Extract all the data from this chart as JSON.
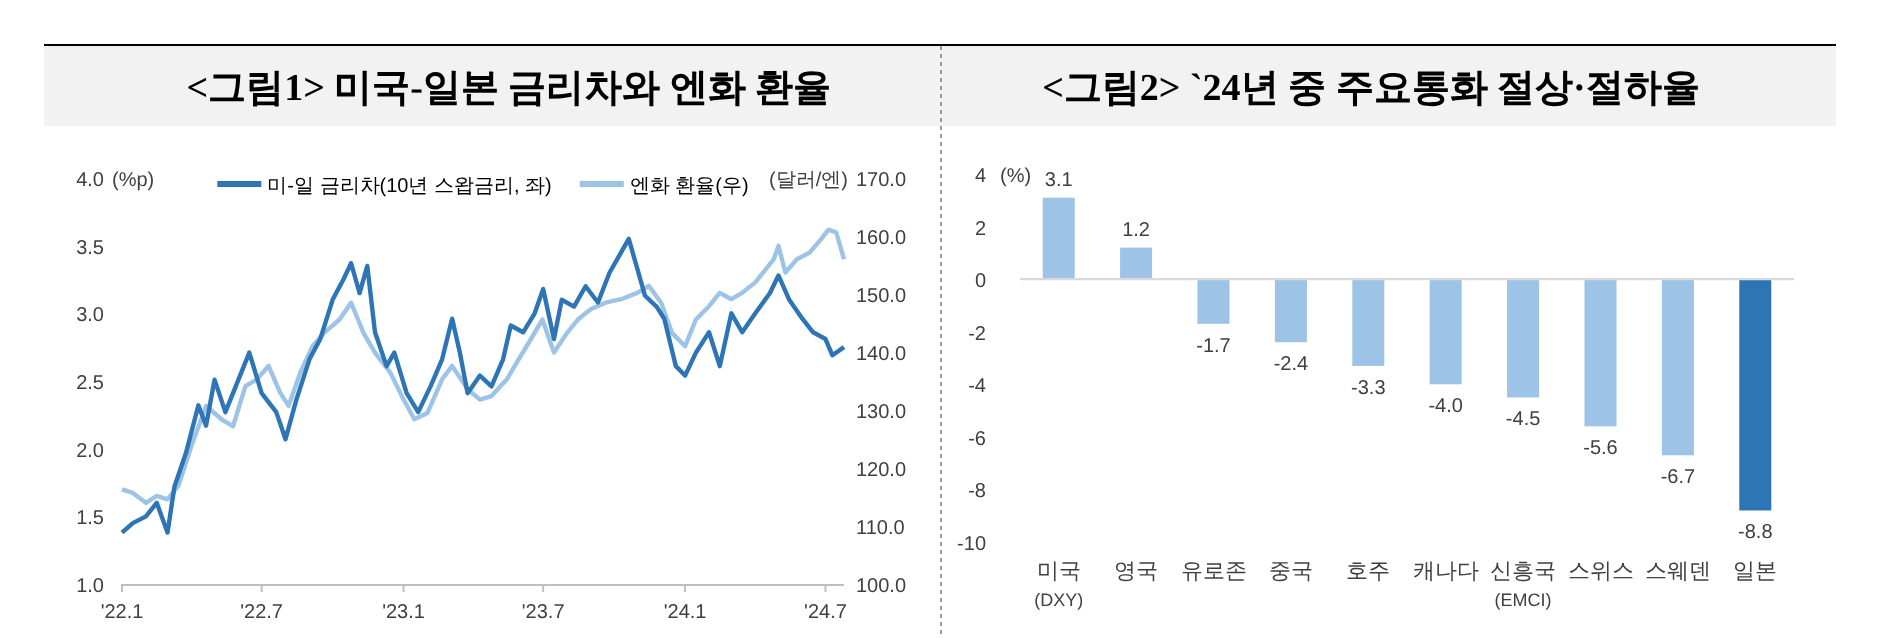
{
  "chart_data": [
    {
      "type": "line",
      "title": "<그림1> 미국-일본 금리차와 엔화 환율",
      "ylabel": "(%p)",
      "y2label": "(달러/엔)",
      "legend": "top",
      "xlim": [
        "2022-01-01",
        "2024-07-25"
      ],
      "xticks": [
        {
          "value": "2022-01-01",
          "label": "'22.1"
        },
        {
          "value": "2022-07-01",
          "label": "'22.7"
        },
        {
          "value": "2023-01-01",
          "label": "'23.1"
        },
        {
          "value": "2023-07-01",
          "label": "'23.7"
        },
        {
          "value": "2024-01-01",
          "label": "'24.1"
        },
        {
          "value": "2024-07-01",
          "label": "'24.7"
        }
      ],
      "ylim": [
        1,
        4
      ],
      "yticks": [
        {
          "value": 1,
          "label": "1.0"
        },
        {
          "value": 1.5,
          "label": "1.5"
        },
        {
          "value": 2,
          "label": "2.0"
        },
        {
          "value": 2.5,
          "label": "2.5"
        },
        {
          "value": 3,
          "label": "3.0"
        },
        {
          "value": 3.5,
          "label": "3.5"
        },
        {
          "value": 4,
          "label": "4.0"
        }
      ],
      "y2lim": [
        100,
        170
      ],
      "y2ticks": [
        {
          "value": 100,
          "label": "100.0"
        },
        {
          "value": 110,
          "label": "110.0"
        },
        {
          "value": 120,
          "label": "120.0"
        },
        {
          "value": 130,
          "label": "130.0"
        },
        {
          "value": 140,
          "label": "140.0"
        },
        {
          "value": 150,
          "label": "150.0"
        },
        {
          "value": 160,
          "label": "160.0"
        },
        {
          "value": 170,
          "label": "170.0"
        }
      ],
      "series": [
        {
          "name": "미-일 금리차(10년 스왑금리, 좌)",
          "color": "#2e75b6",
          "x": [
            "2022-01-01",
            "2022-01-15",
            "2022-02-01",
            "2022-02-15",
            "2022-03-01",
            "2022-03-10",
            "2022-03-25",
            "2022-04-10",
            "2022-04-20",
            "2022-05-01",
            "2022-05-15",
            "2022-06-01",
            "2022-06-15",
            "2022-07-01",
            "2022-07-20",
            "2022-08-01",
            "2022-08-15",
            "2022-09-01",
            "2022-09-15",
            "2022-10-01",
            "2022-10-15",
            "2022-10-25",
            "2022-11-05",
            "2022-11-15",
            "2022-11-25",
            "2022-12-10",
            "2022-12-20",
            "2023-01-05",
            "2023-01-20",
            "2023-02-05",
            "2023-02-20",
            "2023-03-05",
            "2023-03-15",
            "2023-03-25",
            "2023-04-10",
            "2023-04-25",
            "2023-05-10",
            "2023-05-20",
            "2023-06-05",
            "2023-06-20",
            "2023-07-01",
            "2023-07-15",
            "2023-07-25",
            "2023-08-10",
            "2023-08-25",
            "2023-09-10",
            "2023-09-25",
            "2023-10-10",
            "2023-10-20",
            "2023-10-30",
            "2023-11-10",
            "2023-11-25",
            "2023-12-05",
            "2023-12-20",
            "2024-01-01",
            "2024-01-15",
            "2024-02-01",
            "2024-02-15",
            "2024-03-01",
            "2024-03-15",
            "2024-04-01",
            "2024-04-20",
            "2024-05-01",
            "2024-05-15",
            "2024-06-01",
            "2024-06-15",
            "2024-07-01",
            "2024-07-10",
            "2024-07-25"
          ],
          "values": [
            1.38,
            1.45,
            1.5,
            1.6,
            1.38,
            1.72,
            1.97,
            2.32,
            2.17,
            2.51,
            2.27,
            2.51,
            2.71,
            2.41,
            2.27,
            2.07,
            2.36,
            2.66,
            2.81,
            3.1,
            3.25,
            3.37,
            3.15,
            3.35,
            2.86,
            2.61,
            2.71,
            2.41,
            2.27,
            2.46,
            2.66,
            2.96,
            2.71,
            2.41,
            2.54,
            2.46,
            2.66,
            2.91,
            2.86,
            3.0,
            3.18,
            2.81,
            3.1,
            3.05,
            3.2,
            3.08,
            3.3,
            3.45,
            3.55,
            3.35,
            3.13,
            3.05,
            2.96,
            2.61,
            2.54,
            2.71,
            2.86,
            2.61,
            3.0,
            2.86,
            3.0,
            3.15,
            3.28,
            3.1,
            2.96,
            2.86,
            2.81,
            2.69,
            2.75
          ]
        },
        {
          "name": "엔화 환율(우)",
          "color": "#9dc3e6",
          "axis": "y2",
          "x": [
            "2022-01-01",
            "2022-01-15",
            "2022-02-01",
            "2022-02-15",
            "2022-03-01",
            "2022-03-15",
            "2022-04-01",
            "2022-04-20",
            "2022-05-10",
            "2022-05-25",
            "2022-06-10",
            "2022-06-25",
            "2022-07-10",
            "2022-07-25",
            "2022-08-05",
            "2022-08-20",
            "2022-09-05",
            "2022-09-20",
            "2022-10-10",
            "2022-10-25",
            "2022-11-10",
            "2022-11-25",
            "2022-12-15",
            "2023-01-01",
            "2023-01-15",
            "2023-02-01",
            "2023-02-20",
            "2023-03-05",
            "2023-03-25",
            "2023-04-10",
            "2023-04-25",
            "2023-05-15",
            "2023-05-30",
            "2023-06-15",
            "2023-06-30",
            "2023-07-15",
            "2023-08-01",
            "2023-08-15",
            "2023-09-01",
            "2023-09-20",
            "2023-10-10",
            "2023-10-31",
            "2023-11-15",
            "2023-12-01",
            "2023-12-15",
            "2024-01-01",
            "2024-01-15",
            "2024-02-01",
            "2024-02-15",
            "2024-03-01",
            "2024-03-15",
            "2024-04-01",
            "2024-04-25",
            "2024-05-01",
            "2024-05-10",
            "2024-05-25",
            "2024-06-10",
            "2024-06-25",
            "2024-07-05",
            "2024-07-15",
            "2024-07-25"
          ],
          "values": [
            116.3,
            115.7,
            114.0,
            115.2,
            114.6,
            116.9,
            123.8,
            130.7,
            128.4,
            127.2,
            134.1,
            135.3,
            137.6,
            133.0,
            130.7,
            136.4,
            141.0,
            143.3,
            145.6,
            148.5,
            143.3,
            139.9,
            136.4,
            131.8,
            128.4,
            129.5,
            135.3,
            137.6,
            133.6,
            131.8,
            132.4,
            135.3,
            138.7,
            142.2,
            145.6,
            139.9,
            143.3,
            145.6,
            147.4,
            148.5,
            149.1,
            150.2,
            151.4,
            148.5,
            143.3,
            141.0,
            145.6,
            147.9,
            150.2,
            149.1,
            150.2,
            152.0,
            156.0,
            158.3,
            153.7,
            156.0,
            157.1,
            159.4,
            161.1,
            160.6,
            156.0
          ]
        }
      ]
    },
    {
      "type": "bar",
      "title": "<그림2> `24년 중 주요통화 절상·절하율",
      "ylabel": "(%)",
      "categories": [
        "미국\n(DXY)",
        "영국",
        "유로존",
        "중국",
        "호주",
        "캐나다",
        "신흥국\n(EMCI)",
        "스위스",
        "스웨덴",
        "일본"
      ],
      "values": [
        3.1,
        1.2,
        -1.7,
        -2.4,
        -3.3,
        -4.0,
        -4.5,
        -5.6,
        -6.7,
        -8.8
      ],
      "value_labels": [
        "3.1",
        "1.2",
        "-1.7",
        "-2.4",
        "-3.3",
        "-4.0",
        "-4.5",
        "-5.6",
        "-6.7",
        "-8.8"
      ],
      "colors": [
        "#9dc3e6",
        "#9dc3e6",
        "#9dc3e6",
        "#9dc3e6",
        "#9dc3e6",
        "#9dc3e6",
        "#9dc3e6",
        "#9dc3e6",
        "#9dc3e6",
        "#2e75b6"
      ],
      "ylim": [
        -10,
        4
      ],
      "yticks": [
        -10,
        -8,
        -6,
        -4,
        -2,
        0,
        2,
        4
      ]
    }
  ]
}
